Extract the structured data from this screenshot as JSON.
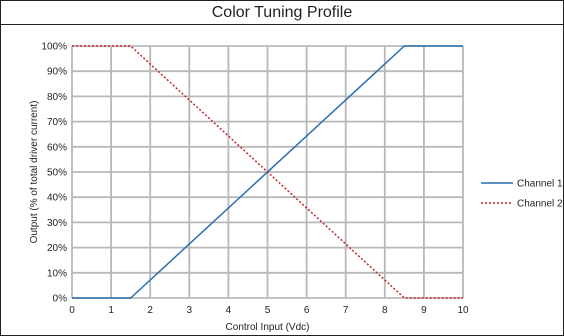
{
  "chart_data": {
    "type": "line",
    "title": "Color Tuning Profile",
    "xlabel": "Control Input (Vdc)",
    "ylabel": "Output (% of total driver current)",
    "xlim": [
      0,
      10
    ],
    "ylim": [
      0,
      100
    ],
    "x_ticks": [
      "0",
      "1",
      "2",
      "3",
      "4",
      "5",
      "6",
      "7",
      "8",
      "9",
      "10"
    ],
    "y_ticks": [
      "0%",
      "10%",
      "20%",
      "30%",
      "40%",
      "50%",
      "60%",
      "70%",
      "80%",
      "90%",
      "100%"
    ],
    "grid": true,
    "legend_position": "right",
    "series": [
      {
        "name": "Channel 1",
        "color": "#2a6fb0",
        "style": "solid",
        "points": [
          [
            0,
            0
          ],
          [
            1.5,
            0
          ],
          [
            8.5,
            100
          ],
          [
            10,
            100
          ]
        ]
      },
      {
        "name": "Channel 2",
        "color": "#cc2229",
        "style": "dotted",
        "points": [
          [
            0,
            100
          ],
          [
            1.5,
            100
          ],
          [
            8.5,
            0
          ],
          [
            10,
            0
          ]
        ]
      }
    ]
  }
}
